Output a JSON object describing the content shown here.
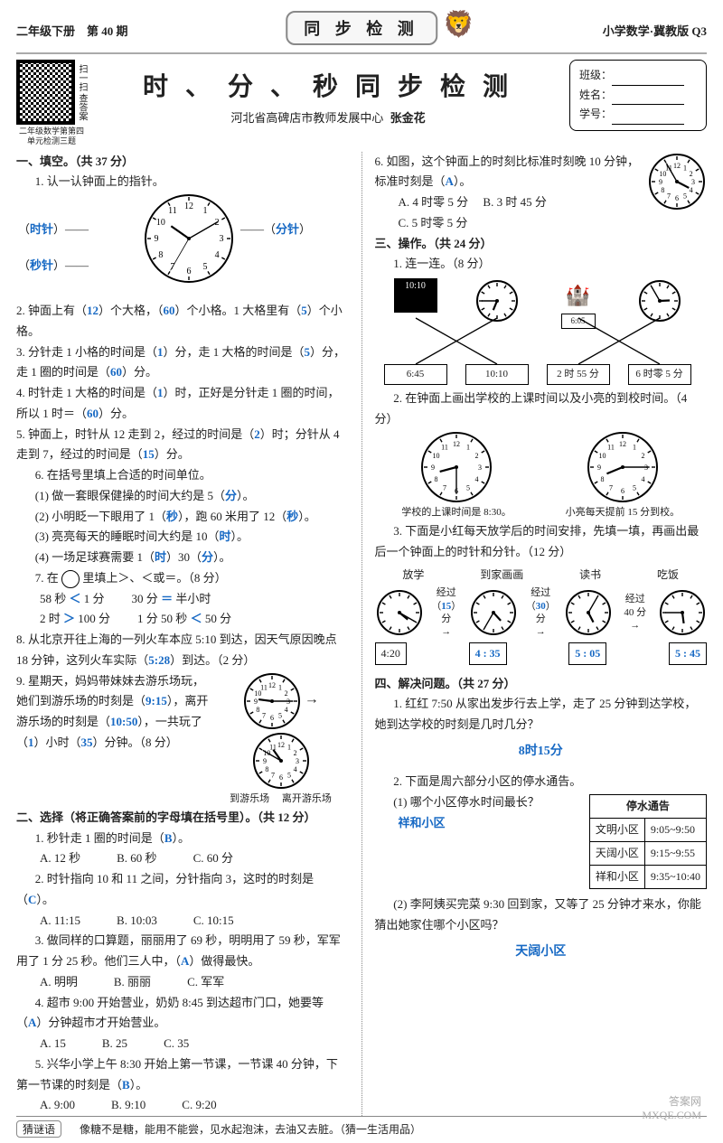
{
  "header": {
    "left": "二年级下册　第 40 期",
    "center": "同 步 检 测",
    "right": "小学数学·冀教版  Q3"
  },
  "title": {
    "qr_caption": "二年级数学第第四单元检测三题",
    "qr_side": "扫一扫 查答案",
    "main": "时 、 分 、 秒 同 步 检 测",
    "subtitle_org": "河北省高碑店市教师发展中心",
    "subtitle_author": "张金花"
  },
  "info": {
    "class_label": "班级：",
    "name_label": "姓名：",
    "id_label": "学号："
  },
  "left": {
    "s1_head": "一、填空。（共 37 分）",
    "q1_head": "1. 认一认钟面上的指针。",
    "q1_hour": "时针",
    "q1_minute": "分针",
    "q1_second": "秒针",
    "q2_a": "2. 钟面上有（",
    "q2_v1": "12",
    "q2_b": "）个大格，（",
    "q2_v2": "60",
    "q2_c": "）个小格。1 大格里有（",
    "q2_v3": "5",
    "q2_d": "）个小格。",
    "q3_a": "3. 分针走 1 小格的时间是（",
    "q3_v1": "1",
    "q3_b": "）分，走 1 大格的时间是（",
    "q3_v2": "5",
    "q3_c": "）分，走 1 圈的时间是（",
    "q3_v3": "60",
    "q3_d": "）分。",
    "q4_a": "4. 时针走 1 大格的时间是（",
    "q4_v1": "1",
    "q4_b": "）时，正好是分针走 1 圈的时间，所以 1 时＝（",
    "q4_v2": "60",
    "q4_c": "）分。",
    "q5_a": "5. 钟面上，时针从 12 走到 2，经过的时间是（",
    "q5_v1": "2",
    "q5_b": "）时；分针从 4 走到 7，经过的时间是（",
    "q5_v2": "15",
    "q5_c": "）分。",
    "q6_head": "6. 在括号里填上合适的时间单位。",
    "q6_1a": "(1) 做一套眼保健操的时间大约是 5（",
    "q6_1v": "分",
    "q6_1b": "）。",
    "q6_2a": "(2) 小明眨一下眼用了 1（",
    "q6_2v": "秒",
    "q6_2b": "），跑 60 米用了 12（",
    "q6_2v2": "秒",
    "q6_2c": "）。",
    "q6_3a": "(3) 亮亮每天的睡眠时间大约是 10（",
    "q6_3v": "时",
    "q6_3b": "）。",
    "q6_4a": "(4) 一场足球赛需要 1（",
    "q6_4v1": "时",
    "q6_4b": "）30（",
    "q6_4v2": "分",
    "q6_4c": "）。",
    "q7_head_a": "7. 在",
    "q7_head_b": "里填上＞、＜或＝。（8 分）",
    "q7_r1a": "58 秒",
    "q7_r1v": "＜",
    "q7_r1b": "1 分",
    "q7_r1c": "30 分",
    "q7_r1v2": "＝",
    "q7_r1d": "半小时",
    "q7_r2a": "2 时",
    "q7_r2v": "＞",
    "q7_r2b": "100 分",
    "q7_r2c": "1 分 50 秒",
    "q7_r2v2": "＜",
    "q7_r2d": "50 分",
    "q8_a": "8. 从北京开往上海的一列火车本应 5:10 到达，因天气原因晚点 18 分钟，这列火车实际（",
    "q8_v": "5:28",
    "q8_b": "）到达。（2 分）",
    "q9_a": "9. 星期天，妈妈带妹妹去游乐场玩，她们到游乐场的时刻是（",
    "q9_v1": "9:15",
    "q9_b": "），离开游乐场的时刻是（",
    "q9_v2": "10:50",
    "q9_c": "），一共玩了（",
    "q9_v3": "1",
    "q9_d": "）小时（",
    "q9_v4": "35",
    "q9_e": "）分钟。（8 分）",
    "q9_cap1": "到游乐场",
    "q9_cap2": "离开游乐场",
    "s2_head": "二、选择（将正确答案前的字母填在括号里）。（共 12 分）",
    "c1_q": "1. 秒针走 1 圈的时间是（",
    "c1_v": "B",
    "c1_q2": "）。",
    "c1_A": "A. 12 秒",
    "c1_B": "B. 60 秒",
    "c1_C": "C. 60 分",
    "c2_q": "2. 时针指向 10 和 11 之间，分针指向 3，这时的时刻是（",
    "c2_v": "C",
    "c2_q2": "）。",
    "c2_A": "A. 11:15",
    "c2_B": "B. 10:03",
    "c2_C": "C. 10:15",
    "c3_q": "3. 做同样的口算题，丽丽用了 69 秒，明明用了 59 秒，军军用了 1 分 25 秒。他们三人中，（",
    "c3_v": "A",
    "c3_q2": "）做得最快。",
    "c3_A": "A. 明明",
    "c3_B": "B. 丽丽",
    "c3_C": "C. 军军",
    "c4_q": "4. 超市 9:00 开始营业，奶奶 8:45 到达超市门口，她要等（",
    "c4_v": "A",
    "c4_q2": "）分钟超市才开始营业。",
    "c4_A": "A. 15",
    "c4_B": "B. 25",
    "c4_C": "C. 35",
    "c5_q": "5. 兴华小学上午 8:30 开始上第一节课，一节课 40 分钟，下第一节课的时刻是（",
    "c5_v": "B",
    "c5_q2": "）。",
    "c5_A": "A. 9:00",
    "c5_B": "B. 9:10",
    "c5_C": "C. 9:20"
  },
  "right": {
    "q6_a": "6. 如图，这个钟面上的时刻比标准时刻晚 10 分钟，标准时刻是（",
    "q6_v": "A",
    "q6_b": "）。",
    "q6_A": "A. 4 时零 5 分",
    "q6_B": "B. 3 时 45 分",
    "q6_C": "C. 5 时零 5 分",
    "s3_head": "三、操作。（共 24 分）",
    "p1_head": "1. 连一连。（8 分）",
    "p1_top": [
      "■ 10:10",
      "钟 6:45",
      "城堡 6:05",
      "钟 2:55"
    ],
    "p1_bottom": [
      "6:45",
      "10:10",
      "2 时 55 分",
      "6 时零 5 分"
    ],
    "p2_head": "2. 在钟面上画出学校的上课时间以及小亮的到校时间。（4 分）",
    "p2_cap1": "学校的上课时间是 8:30。",
    "p2_cap2": "小亮每天提前 15 分到校。",
    "p3_head": "3. 下面是小红每天放学后的时间安排，先填一填，再画出最后一个钟面上的时针和分针。（12 分）",
    "p3_labels": [
      "放学",
      "到家画画",
      "读书",
      "吃饭"
    ],
    "p3_pass_label": "经过",
    "p3_pass_vals": [
      "15",
      "30",
      "40"
    ],
    "p3_pass_unit": "）分",
    "p3_times": [
      "4:20",
      "4 : 35",
      "5 : 05",
      "5 : 45"
    ],
    "s4_head": "四、解决问题。（共 27 分）",
    "w1_q": "1. 红红 7:50 从家出发步行去上学，走了 25 分钟到达学校，她到达学校的时刻是几时几分？",
    "w1_ans": "8时15分",
    "w2_q": "2. 下面是周六部分小区的停水通告。",
    "w2_1q": "(1) 哪个小区停水时间最长？",
    "w2_1ans": "祥和小区",
    "notice_title": "停水通告",
    "notice_rows": [
      [
        "文明小区",
        "9:05~9:50"
      ],
      [
        "天阔小区",
        "9:15~9:55"
      ],
      [
        "祥和小区",
        "9:35~10:40"
      ]
    ],
    "w2_2q": "(2) 李阿姨买完菜 9:30 回到家，又等了 25 分钟才来水，你能猜出她家住哪个小区吗？",
    "w2_2ans": "天阔小区"
  },
  "footer": {
    "tag": "猜谜语",
    "riddle": "像糖不是糖，能用不能尝，见水起泡沫，去油又去脏。（猜一生活用品）"
  },
  "watermark": {
    "l1": "答案网",
    "l2": "MXQE.COM"
  },
  "clocks": {
    "q1": {
      "h": 10,
      "m": 10,
      "s": 35,
      "r": 48
    },
    "q9a": {
      "h": 9,
      "m": 15,
      "r": 30
    },
    "q9b": {
      "h": 10,
      "m": 50,
      "r": 30
    },
    "r6": {
      "h": 3,
      "m": 55,
      "r": 30
    },
    "p1a": {
      "h": 6,
      "m": 45,
      "r": 22
    },
    "p1b": {
      "h": 2,
      "m": 55,
      "r": 22
    },
    "p2a": {
      "h": 8,
      "m": 30,
      "r": 38
    },
    "p2b": {
      "h": 8,
      "m": 15,
      "r": 38
    },
    "s0": {
      "h": 4,
      "m": 20,
      "r": 24
    },
    "s1": {
      "h": 4,
      "m": 35,
      "r": 24
    },
    "s2": {
      "h": 5,
      "m": 5,
      "r": 24
    },
    "s3": {
      "h": 5,
      "m": 45,
      "r": 24
    }
  }
}
